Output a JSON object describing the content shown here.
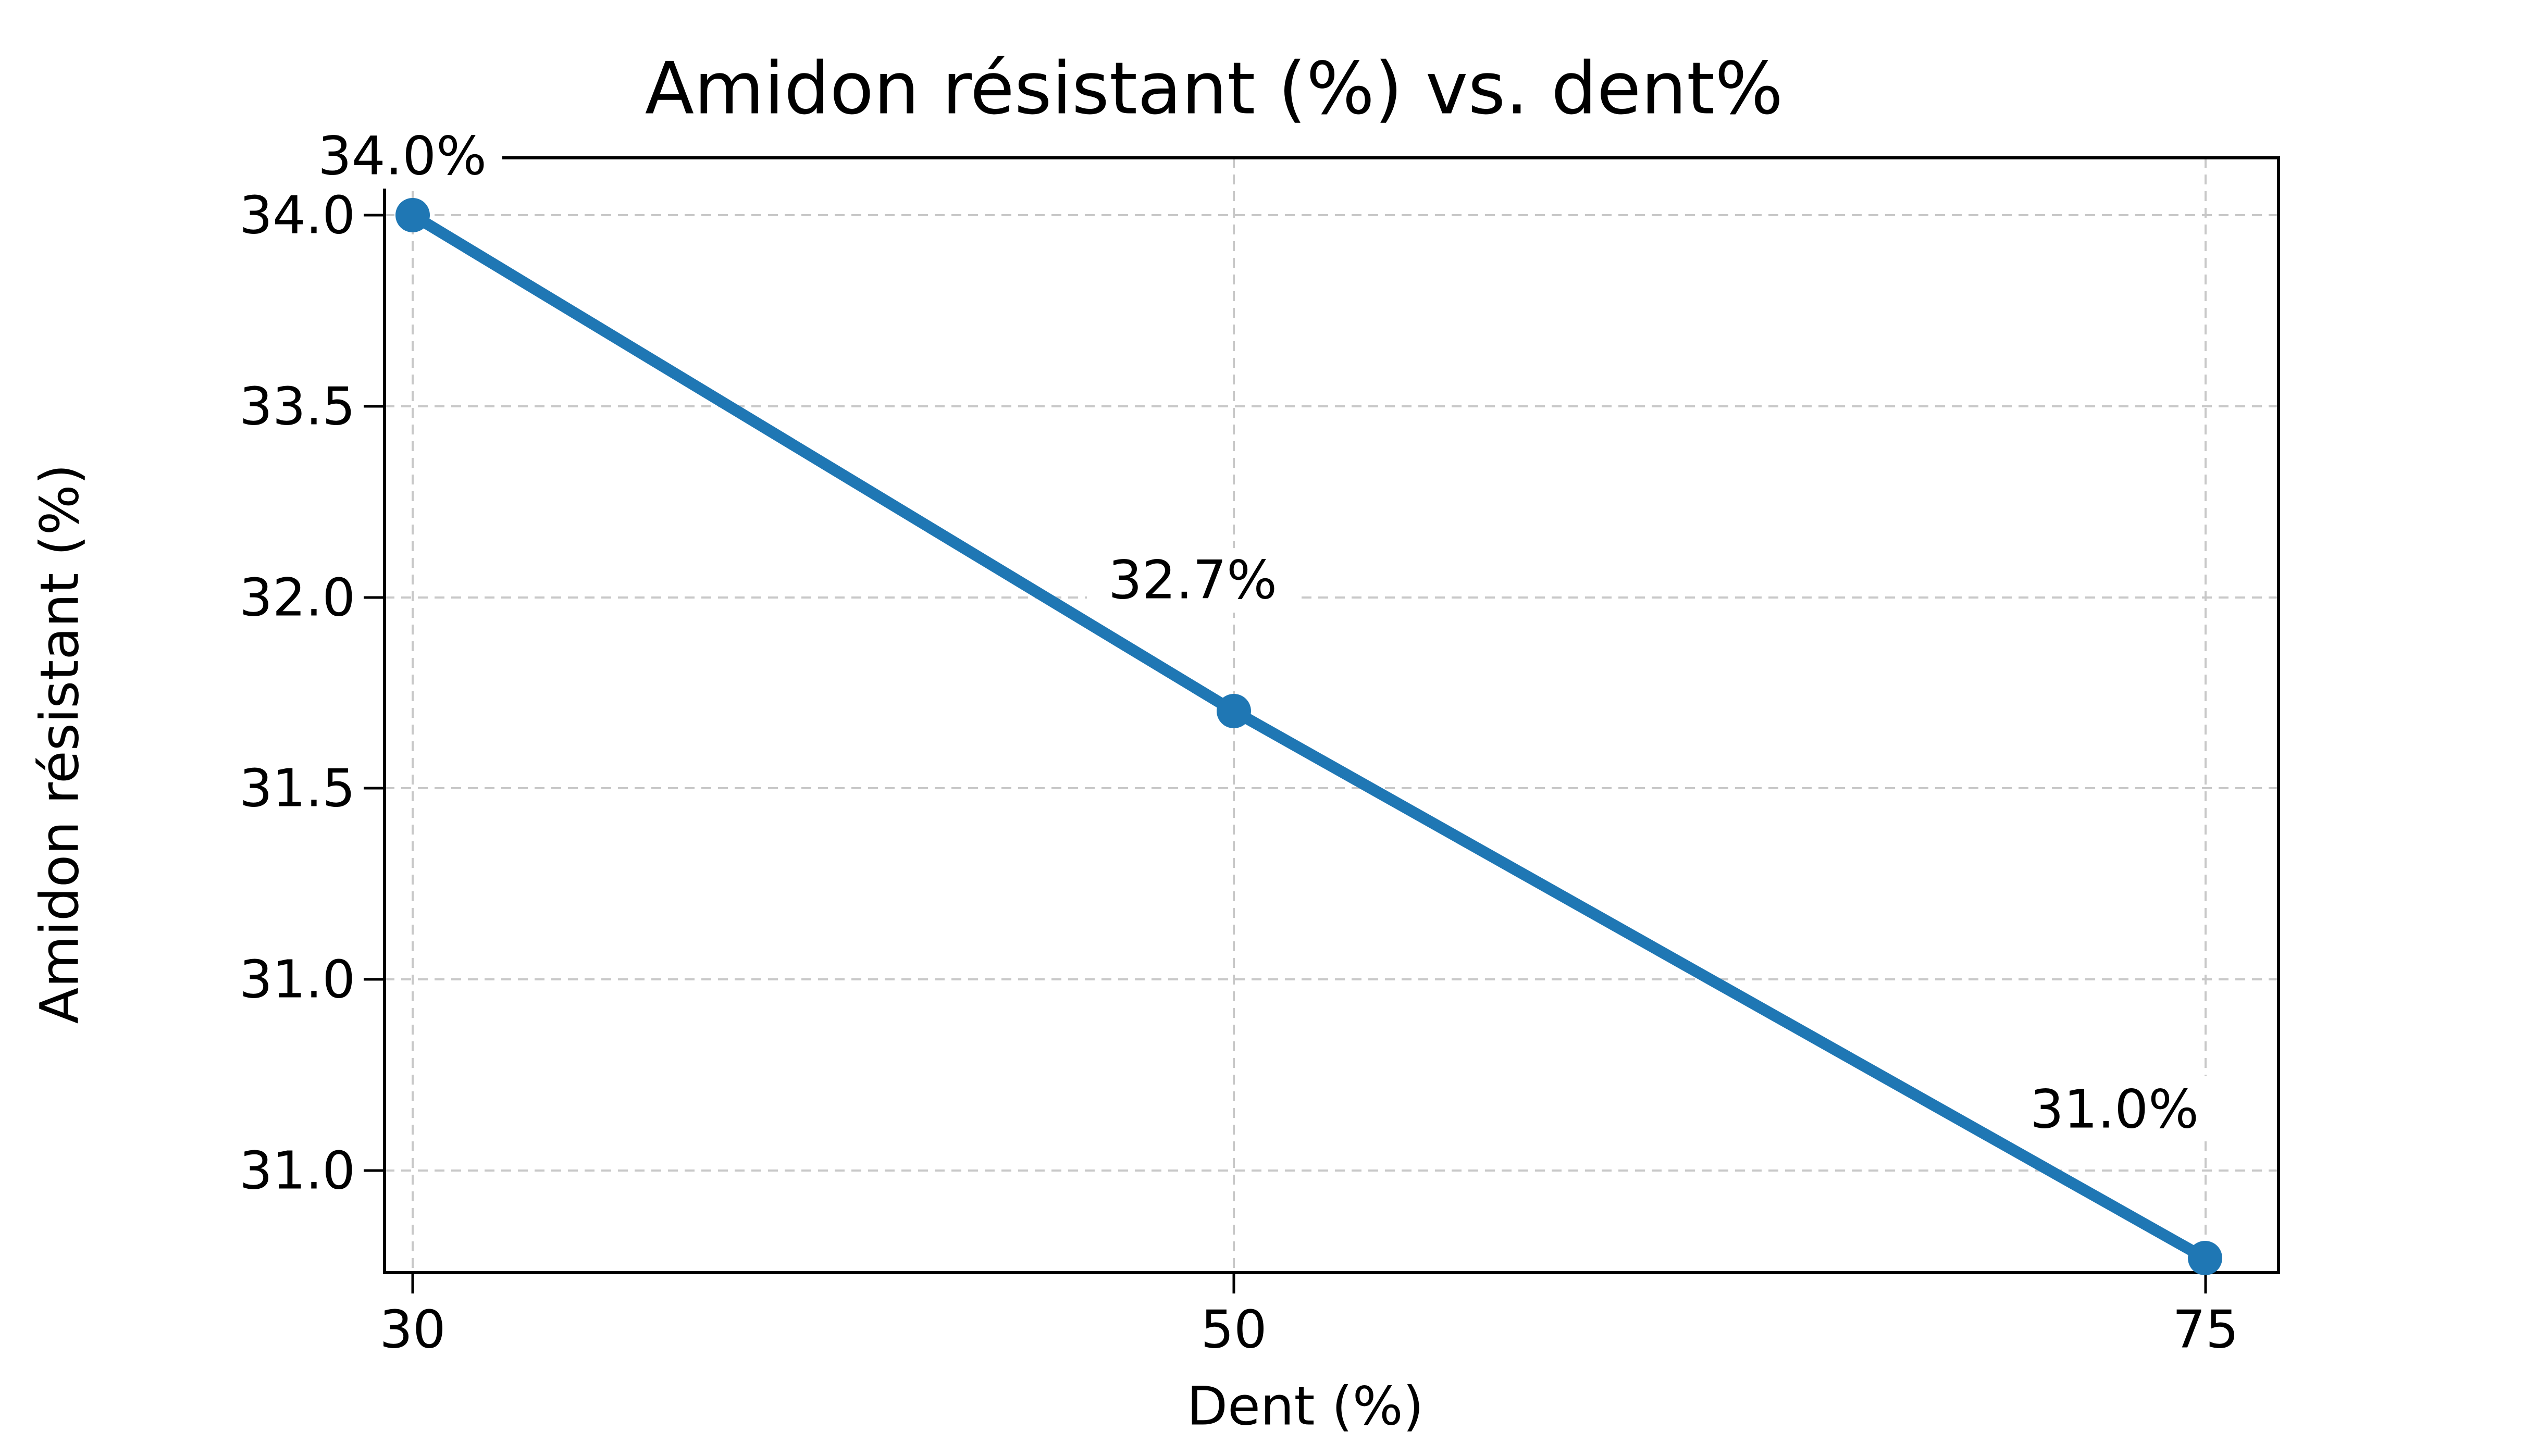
{
  "chart_data": {
    "type": "line",
    "title": "Amidon résistant (%) vs. dent%",
    "xlabel": "Dent (%)",
    "ylabel": "Amidon résistant (%)",
    "x": [
      30,
      50,
      75
    ],
    "y": [
      34.0,
      32.7,
      31.0
    ],
    "point_labels": [
      "34.0%",
      "32.7%",
      "31.0%"
    ],
    "x_tick_labels": [
      "30",
      "50",
      "75"
    ],
    "y_tick_labels": [
      "34.0",
      "33.5",
      "32.0",
      "31.5",
      "31.0",
      "31.0"
    ],
    "grid": true,
    "grid_style": "dashed",
    "legend_position": "none",
    "line_color": "#1f77b4",
    "marker_color": "#1f77b4",
    "grid_color": "#c8c8c8",
    "axis_color": "#000000",
    "text_color": "#000000",
    "background_color": "#ffffff"
  }
}
